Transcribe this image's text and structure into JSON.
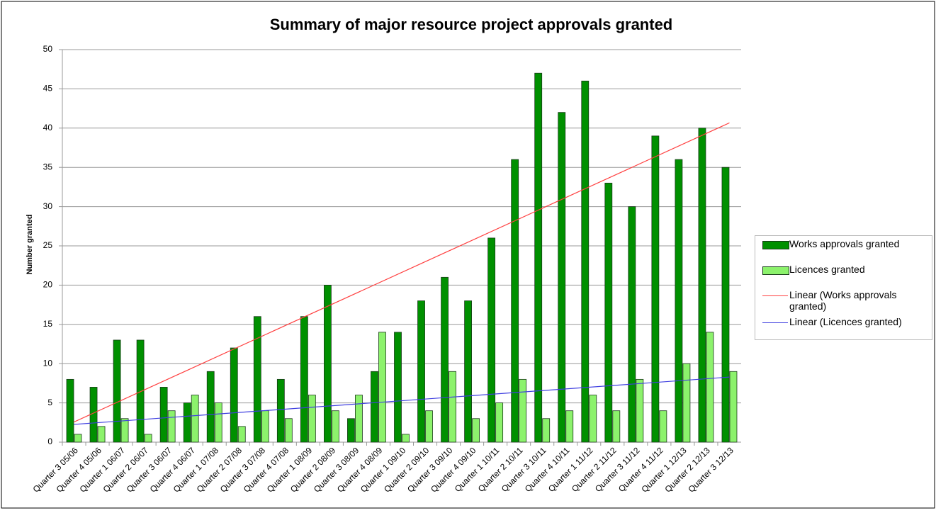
{
  "chart_data": {
    "type": "bar",
    "title": "Summary of major resource project approvals granted",
    "y_label": "Number granted",
    "categories": [
      "Quarter 3 05/06",
      "Quarter 4 05/06",
      "Quarter 1 06/07",
      "Quarter 2 06/07",
      "Quarter 3 06/07",
      "Quarter 4 06/07",
      "Quarter 1 07/08",
      "Quarter 2 07/08",
      "Quarter 3 07/08",
      "Quarter 4 07/08",
      "Quarter 1 08/09",
      "Quarter 2 08/09",
      "Quarter 3 08/09",
      "Quarter 4 08/09",
      "Quarter 1 09/10",
      "Quarter 2 09/10",
      "Quarter 3 09/10",
      "Quarter 4 09/10",
      "Quarter 1 10/11",
      "Quarter 2 10/11",
      "Quarter 3 10/11",
      "Quarter 4 10/11",
      "Quarter 1 11/12",
      "Quarter 2 11/12",
      "Quarter 3 11/12",
      "Quarter 4 11/12",
      "Quarter 1 12/13",
      "Quarter 2 12/13",
      "Quarter 3 12/13"
    ],
    "series": [
      {
        "name": "Works approvals granted",
        "color": "#009000",
        "values": [
          8,
          7,
          13,
          13,
          7,
          5,
          9,
          12,
          16,
          8,
          16,
          20,
          3,
          9,
          14,
          18,
          21,
          18,
          26,
          36,
          47,
          42,
          46,
          33,
          30,
          39,
          36,
          40,
          35
        ],
        "trendline": {
          "name": "Linear (Works approvals granted)",
          "color": "#ff4040"
        }
      },
      {
        "name": "Licences granted",
        "color": "#8cf26c",
        "values": [
          1,
          2,
          3,
          1,
          4,
          6,
          5,
          2,
          4,
          3,
          6,
          4,
          6,
          14,
          1,
          4,
          9,
          3,
          5,
          8,
          3,
          4,
          6,
          4,
          8,
          4,
          10,
          14,
          9
        ],
        "trendline": {
          "name": "Linear (Licences granted)",
          "color": "#4040e0"
        }
      }
    ],
    "ylim": [
      0,
      50
    ],
    "yticks": [
      0,
      5,
      10,
      15,
      20,
      25,
      30,
      35,
      40,
      45,
      50
    ],
    "grid": true,
    "legend": "right"
  }
}
